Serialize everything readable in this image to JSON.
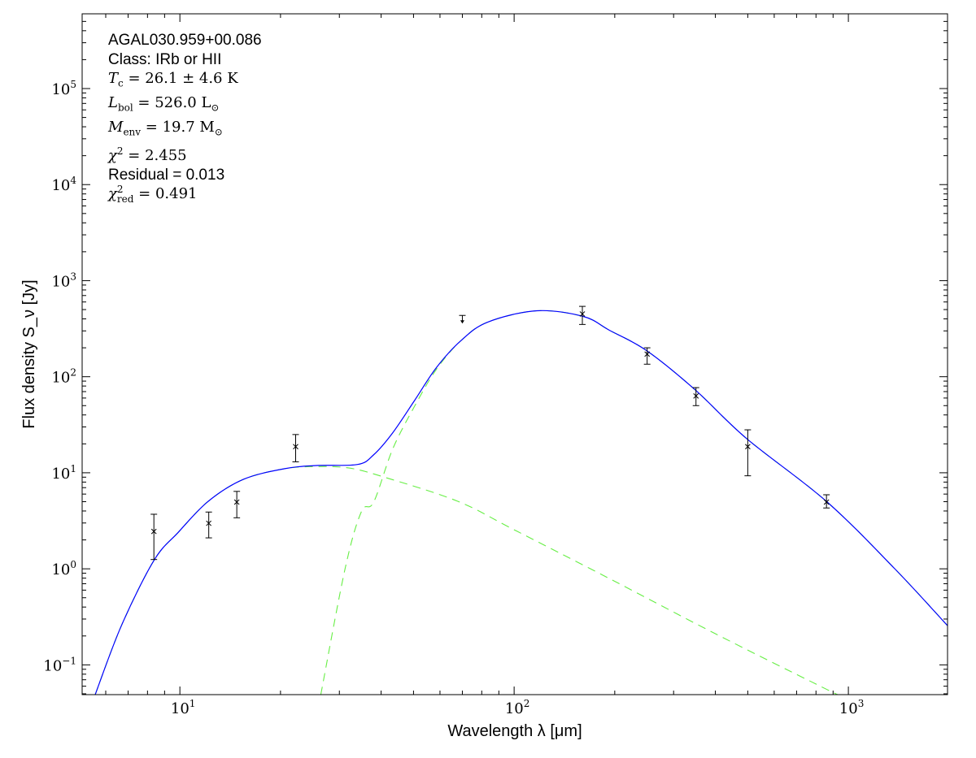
{
  "chart_data": {
    "type": "scatter",
    "xlabel": "Wavelength λ [μm]",
    "ylabel": "Flux density S_ν [Jy]",
    "xscale": "log",
    "yscale": "log",
    "xlim": [
      5.1,
      1980
    ],
    "ylim": [
      0.049,
      600000
    ],
    "x_ticks": [
      {
        "value": 10,
        "base": "10",
        "exp": "1"
      },
      {
        "value": 100,
        "base": "10",
        "exp": "2"
      },
      {
        "value": 1000,
        "base": "10",
        "exp": "3"
      }
    ],
    "y_ticks": [
      {
        "value": 0.1,
        "base": "10",
        "exp": "−1"
      },
      {
        "value": 1,
        "base": "10",
        "exp": "0"
      },
      {
        "value": 10,
        "base": "10",
        "exp": "1"
      },
      {
        "value": 100,
        "base": "10",
        "exp": "2"
      },
      {
        "value": 1000,
        "base": "10",
        "exp": "3"
      },
      {
        "value": 10000,
        "base": "10",
        "exp": "4"
      },
      {
        "value": 100000,
        "base": "10",
        "exp": "5"
      }
    ],
    "grid": false,
    "annotations": [
      {
        "kind": "text",
        "text": "AGAL030.959+00.086"
      },
      {
        "kind": "text",
        "text": "Class: IRb or HII"
      },
      {
        "kind": "math",
        "sym": "T",
        "sub": "c",
        "sup": "",
        "rest": " = 26.1 ± 4.6 K",
        "unit_sub": ""
      },
      {
        "kind": "math",
        "sym": "L",
        "sub": "bol",
        "sup": "",
        "rest": " = 526.0 L",
        "unit_sub": "⊙"
      },
      {
        "kind": "math",
        "sym": "M",
        "sub": "env",
        "sup": "",
        "rest": " = 19.7 M",
        "unit_sub": "⊙"
      },
      {
        "kind": "math",
        "sym": "χ",
        "sub": "",
        "sup": "2",
        "rest": " = 2.455",
        "unit_sub": ""
      },
      {
        "kind": "text",
        "text": "Residual = 0.013"
      },
      {
        "kind": "math",
        "sym": "χ",
        "sub": "red",
        "sup": "2",
        "rest": " = 0.491",
        "unit_sub": ""
      }
    ],
    "points": [
      {
        "x": 8.36,
        "y": 2.45,
        "ylo": 1.25,
        "yhi": 3.7
      },
      {
        "x": 12.2,
        "y": 2.98,
        "ylo": 2.1,
        "yhi": 3.9
      },
      {
        "x": 14.8,
        "y": 4.95,
        "ylo": 3.4,
        "yhi": 6.4
      },
      {
        "x": 22.2,
        "y": 18.7,
        "ylo": 13,
        "yhi": 25
      },
      {
        "x": 160,
        "y": 450,
        "ylo": 350,
        "yhi": 540
      },
      {
        "x": 250,
        "y": 172,
        "ylo": 135,
        "yhi": 200
      },
      {
        "x": 350,
        "y": 63,
        "ylo": 50,
        "yhi": 77
      },
      {
        "x": 500,
        "y": 18.7,
        "ylo": 9.3,
        "yhi": 28
      },
      {
        "x": 860,
        "y": 4.95,
        "ylo": 4.3,
        "yhi": 5.9
      }
    ],
    "upper_limits": [
      {
        "x": 70,
        "y": 410
      }
    ],
    "series": [
      {
        "style": "solid",
        "color": "#0000ff",
        "x": [
          5.58,
          6.68,
          8.36,
          9.89,
          12.16,
          15.5,
          20.5,
          25.6,
          34.0,
          38.0,
          43.3,
          50.4,
          58.5,
          69.2,
          83.3,
          117,
          161,
          193,
          249,
          348,
          496,
          859,
          1377,
          1982
        ],
        "y": [
          0.049,
          0.255,
          1.22,
          2.4,
          5.05,
          8.55,
          11.0,
          11.9,
          12.2,
          15.4,
          26.0,
          56.8,
          124,
          236,
          370,
          486,
          424,
          304,
          187,
          73,
          22.7,
          5.05,
          1.0,
          0.255
        ]
      },
      {
        "style": "dashed",
        "color": "#66ee44",
        "x": [
          26.4,
          31.2,
          34.9,
          38.0,
          43.3,
          50.4,
          58.5,
          69.2,
          83.3,
          117,
          161,
          193,
          249,
          348,
          496,
          859,
          1377,
          1982
        ],
        "y": [
          0.049,
          1.0,
          3.92,
          4.95,
          17.6,
          49.5,
          119,
          236,
          370,
          486,
          424,
          304,
          187,
          73,
          22.7,
          5.05,
          1.0,
          0.255
        ]
      },
      {
        "style": "dashed",
        "color": "#66ee44",
        "x": [
          5.58,
          6.68,
          8.36,
          9.89,
          12.16,
          15.5,
          20.5,
          25.6,
          32.1,
          40.6,
          67.8,
          100,
          193,
          401,
          832,
          929
        ],
        "y": [
          0.049,
          0.255,
          1.22,
          2.4,
          5.05,
          8.55,
          11.0,
          11.6,
          11.2,
          9.07,
          5.05,
          2.55,
          0.79,
          0.21,
          0.059,
          0.049
        ]
      }
    ]
  }
}
